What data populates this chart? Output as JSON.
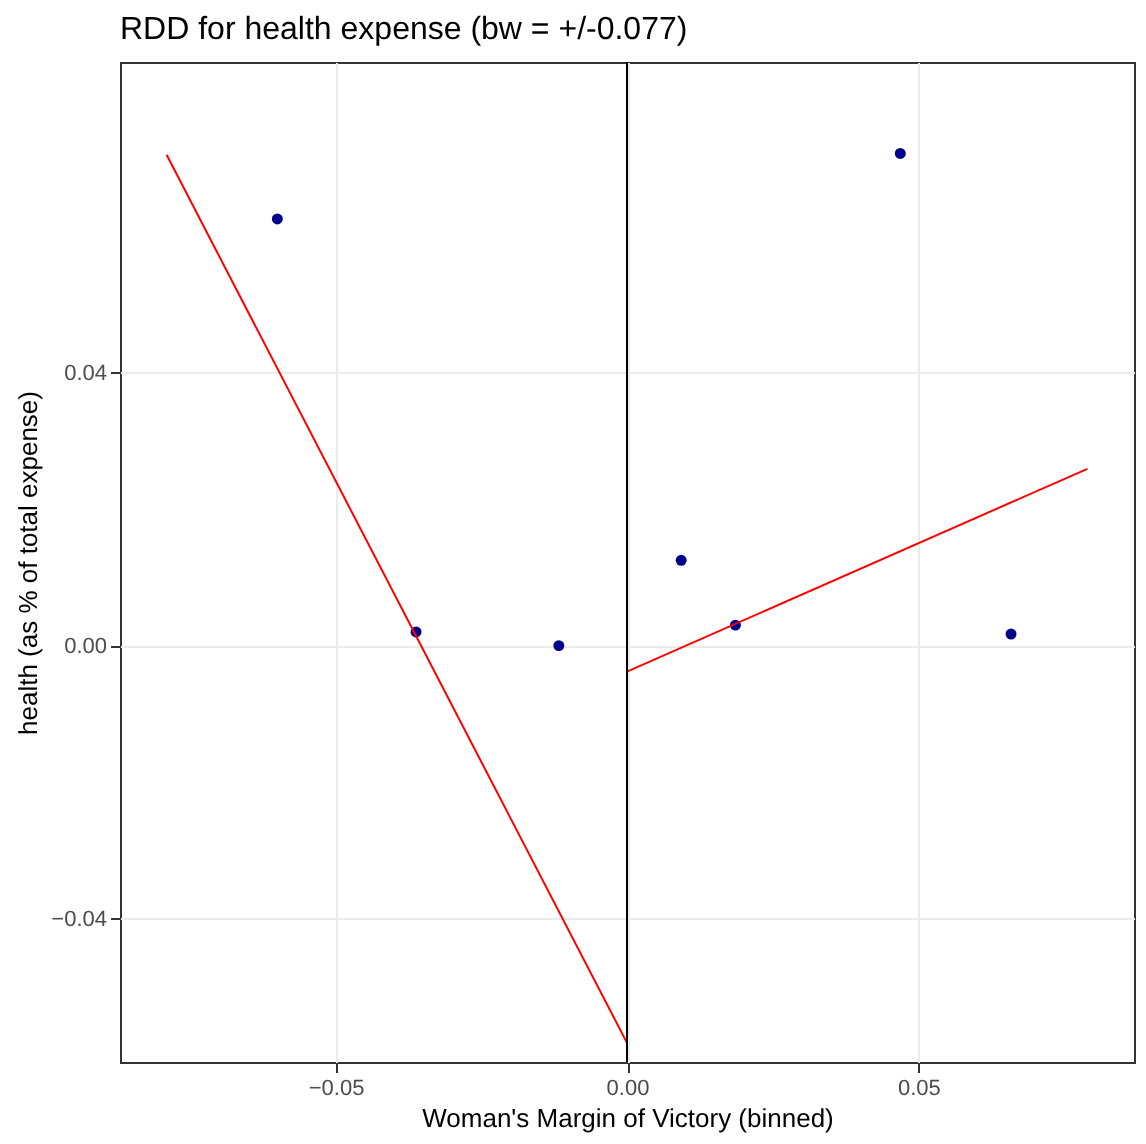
{
  "chart_data": {
    "type": "scatter",
    "title": "RDD for health expense (bw = +/-0.077)",
    "xlabel": "Woman's Margin of Victory (binned)",
    "ylabel": "health (as % of total expense)",
    "xlim": [
      -0.087,
      0.087
    ],
    "ylim": [
      -0.061,
      0.0855
    ],
    "xticks": [
      -0.05,
      {
        "value": 0,
        "label": "0.00"
      },
      0.05
    ],
    "yticks": [
      -0.04,
      {
        "value": 0,
        "label": "0.00"
      },
      0.04
    ],
    "grid": true,
    "series": [
      {
        "marker": "circle",
        "color": "#00008b",
        "x": [
          -0.06,
          -0.0362,
          -0.0117,
          0.0093,
          0.0186,
          0.0469,
          0.0659
        ],
        "values": [
          0.0625,
          0.002,
          0.0,
          0.0125,
          0.003,
          0.0721,
          0.0017
        ]
      },
      {
        "type": "line",
        "color": "#ff0000",
        "x": [
          -0.079,
          0
        ],
        "values": [
          0.0719,
          -0.0582
        ]
      },
      {
        "type": "line",
        "color": "#ff0000",
        "x": [
          0,
          0.079
        ],
        "values": [
          -0.0038,
          0.0259
        ]
      }
    ],
    "ref_lines": [
      {
        "axis": "x",
        "value": 0,
        "color": "#000000"
      }
    ]
  }
}
